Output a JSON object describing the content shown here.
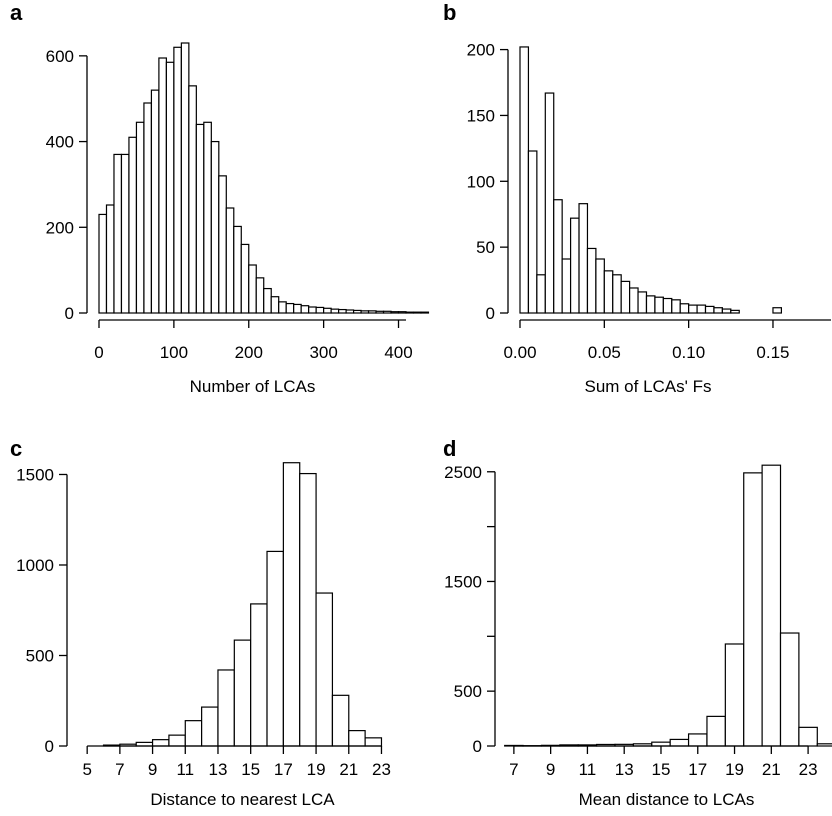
{
  "colors": {
    "bar_fill": "#ffffff",
    "bar_stroke": "#000000",
    "background": "#ffffff"
  },
  "chart_data": [
    {
      "panel": "a",
      "type": "bar",
      "title": "",
      "xlabel": "Number of LCAs",
      "ylabel": "",
      "bin_width": 10,
      "xlim": [
        0,
        440
      ],
      "ylim": [
        0,
        630
      ],
      "xticks": [
        0,
        100,
        200,
        300,
        400
      ],
      "xtick_labels": [
        "0",
        "100",
        "200",
        "300",
        "400"
      ],
      "yticks": [
        0,
        200,
        400,
        600
      ],
      "ytick_labels": [
        "0",
        "200",
        "400",
        "600"
      ],
      "bins": [
        0,
        10,
        20,
        30,
        40,
        50,
        60,
        70,
        80,
        90,
        100,
        110,
        120,
        130,
        140,
        150,
        160,
        170,
        180,
        190,
        200,
        210,
        220,
        230,
        240,
        250,
        260,
        270,
        280,
        290,
        300,
        310,
        320,
        330,
        340,
        350,
        360,
        370,
        380,
        390,
        400,
        410,
        420,
        430
      ],
      "values": [
        230,
        252,
        370,
        370,
        410,
        445,
        490,
        520,
        595,
        585,
        620,
        630,
        530,
        440,
        445,
        400,
        320,
        245,
        202,
        160,
        112,
        82,
        57,
        38,
        26,
        22,
        20,
        17,
        14,
        13,
        11,
        9,
        8,
        7,
        6,
        5,
        5,
        4,
        4,
        3,
        3,
        2,
        2,
        2
      ]
    },
    {
      "panel": "b",
      "type": "bar",
      "title": "",
      "xlabel": "Sum of LCAs' Fs",
      "ylabel": "",
      "bin_width": 0.005,
      "xlim": [
        0,
        0.185
      ],
      "ylim": [
        0,
        205
      ],
      "xticks": [
        0,
        0.05,
        0.1,
        0.15
      ],
      "xtick_labels": [
        "0.00",
        "0.05",
        "0.10",
        "0.15"
      ],
      "yticks": [
        0,
        50,
        100,
        150,
        200
      ],
      "ytick_labels": [
        "0",
        "50",
        "100",
        "150",
        "200"
      ],
      "bins": [
        0,
        0.005,
        0.01,
        0.015,
        0.02,
        0.025,
        0.03,
        0.035,
        0.04,
        0.045,
        0.05,
        0.055,
        0.06,
        0.065,
        0.07,
        0.075,
        0.08,
        0.085,
        0.09,
        0.095,
        0.1,
        0.105,
        0.11,
        0.115,
        0.12,
        0.125,
        0.13,
        0.135,
        0.14,
        0.145,
        0.15
      ],
      "values": [
        202,
        123,
        29,
        167,
        86,
        41,
        72,
        83,
        49,
        41,
        32,
        29,
        24,
        19,
        16,
        13,
        12,
        11,
        10,
        7,
        6,
        6,
        5,
        4,
        3,
        2,
        0,
        0,
        0,
        0,
        4
      ]
    },
    {
      "panel": "c",
      "type": "bar",
      "title": "",
      "xlabel": "Distance to nearest LCA",
      "ylabel": "",
      "bin_width": 1,
      "xlim": [
        4.5,
        24.5
      ],
      "ylim": [
        0,
        1580
      ],
      "xticks": [
        5,
        7,
        9,
        11,
        13,
        15,
        17,
        19,
        21,
        23
      ],
      "xtick_labels": [
        "5",
        "7",
        "9",
        "11",
        "13",
        "15",
        "17",
        "19",
        "21",
        "23"
      ],
      "yticks": [
        0,
        500,
        1000,
        1500
      ],
      "ytick_labels": [
        "0",
        "500",
        "1000",
        "1500"
      ],
      "bins": [
        6,
        7,
        8,
        9,
        10,
        11,
        12,
        13,
        14,
        15,
        16,
        17,
        18,
        19,
        20,
        21,
        22
      ],
      "values": [
        5,
        10,
        20,
        35,
        60,
        140,
        215,
        420,
        585,
        785,
        1075,
        1565,
        1505,
        845,
        280,
        85,
        45
      ]
    },
    {
      "panel": "d",
      "type": "bar",
      "title": "",
      "xlabel": "Mean distance to LCAs",
      "ylabel": "",
      "bin_width": 1,
      "xlim": [
        6.3,
        24.3
      ],
      "ylim": [
        0,
        2580
      ],
      "xticks": [
        7,
        9,
        11,
        13,
        15,
        17,
        19,
        21,
        23
      ],
      "xtick_labels": [
        "7",
        "9",
        "11",
        "13",
        "15",
        "17",
        "19",
        "21",
        "23"
      ],
      "yticks": [
        0,
        500,
        1000,
        1500,
        2000,
        2500
      ],
      "ytick_labels": [
        "0",
        "500",
        "",
        "1500",
        "",
        "2500"
      ],
      "bins": [
        6.5,
        7.5,
        8.5,
        9.5,
        10.5,
        11.5,
        12.5,
        13.5,
        14.5,
        15.5,
        16.5,
        17.5,
        18.5,
        19.5,
        20.5,
        21.5,
        22.5,
        23.5
      ],
      "values": [
        5,
        3,
        6,
        10,
        10,
        14,
        15,
        20,
        35,
        60,
        110,
        270,
        930,
        2490,
        2560,
        1030,
        170,
        20
      ]
    }
  ]
}
